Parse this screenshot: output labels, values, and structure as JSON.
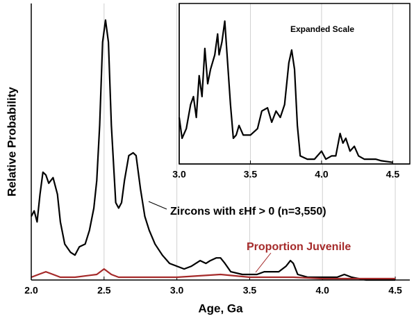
{
  "chart_data": [
    {
      "type": "line",
      "x_label": "Age, Ga",
      "y_label": "Relative Probability",
      "xlim": [
        2.0,
        4.6
      ],
      "ylim": [
        0,
        100
      ],
      "xticks": [
        {
          "value": 2.0,
          "label": "2.0"
        },
        2.5,
        {
          "value": 3.0,
          "label": "3.0"
        },
        3.5,
        {
          "value": 4.0,
          "label": "4.0"
        },
        4.5
      ],
      "grid": true,
      "series": [
        {
          "name": "Zircons with εHf > 0 (n=3,550)",
          "color": "#000000",
          "x": [
            2.0,
            2.02,
            2.04,
            2.06,
            2.08,
            2.1,
            2.12,
            2.15,
            2.18,
            2.2,
            2.23,
            2.27,
            2.3,
            2.33,
            2.37,
            2.4,
            2.43,
            2.45,
            2.47,
            2.49,
            2.51,
            2.53,
            2.55,
            2.58,
            2.6,
            2.62,
            2.64,
            2.67,
            2.7,
            2.72,
            2.75,
            2.78,
            2.81,
            2.85,
            2.9,
            2.95,
            3.0,
            3.05,
            3.1,
            3.13,
            3.16,
            3.2,
            3.23,
            3.27,
            3.3,
            3.33,
            3.37,
            3.45,
            3.55,
            3.6,
            3.65,
            3.7,
            3.75,
            3.78,
            3.8,
            3.83,
            3.9,
            4.0,
            4.1,
            4.15,
            4.2,
            4.3,
            4.5
          ],
          "values": [
            23,
            25,
            21,
            31,
            39,
            38,
            35,
            37,
            31,
            21,
            13,
            10,
            9,
            12,
            13,
            18,
            26,
            36,
            56,
            86,
            94,
            86,
            56,
            28,
            26,
            28,
            36,
            45,
            46,
            45,
            33,
            23,
            18,
            13,
            9,
            6,
            5,
            4,
            5,
            6,
            7,
            6,
            7,
            8,
            8,
            6,
            3,
            2,
            2,
            3,
            3,
            3,
            5,
            7,
            6,
            2,
            1,
            1,
            1,
            2,
            1,
            0,
            0
          ]
        },
        {
          "name": "Proportion Juvenile",
          "color": "#a52a2a",
          "x": [
            2.0,
            2.05,
            2.1,
            2.15,
            2.2,
            2.3,
            2.45,
            2.5,
            2.55,
            2.6,
            2.8,
            3.0,
            3.3,
            3.5,
            3.8,
            4.0,
            4.5
          ],
          "values": [
            1,
            2,
            3,
            2,
            1,
            1,
            2,
            4,
            2,
            1,
            1,
            1,
            2,
            1,
            1,
            0.5,
            0.5
          ]
        }
      ]
    },
    {
      "type": "line",
      "title": "Expanded Scale",
      "xlim": [
        3.0,
        4.62
      ],
      "ylim": [
        0,
        100
      ],
      "xticks": [
        {
          "value": 3.0,
          "label": "3.0"
        },
        3.5,
        {
          "value": 4.0,
          "label": "4.0"
        },
        4.5
      ],
      "grid": true,
      "series": [
        {
          "color": "#000000",
          "x": [
            3.0,
            3.02,
            3.05,
            3.08,
            3.1,
            3.12,
            3.14,
            3.16,
            3.18,
            3.2,
            3.22,
            3.25,
            3.27,
            3.28,
            3.3,
            3.32,
            3.34,
            3.36,
            3.38,
            3.4,
            3.42,
            3.45,
            3.5,
            3.55,
            3.58,
            3.62,
            3.65,
            3.68,
            3.71,
            3.74,
            3.77,
            3.79,
            3.81,
            3.83,
            3.85,
            3.9,
            3.95,
            4.0,
            4.03,
            4.07,
            4.1,
            4.13,
            4.15,
            4.17,
            4.2,
            4.23,
            4.26,
            4.3,
            4.38,
            4.42,
            4.5
          ],
          "values": [
            29,
            16,
            22,
            37,
            42,
            29,
            55,
            42,
            72,
            50,
            59,
            68,
            81,
            68,
            76,
            89,
            63,
            37,
            16,
            18,
            24,
            18,
            18,
            22,
            33,
            35,
            26,
            33,
            29,
            37,
            63,
            71,
            59,
            24,
            5,
            3,
            3,
            8,
            3,
            5,
            5,
            19,
            13,
            16,
            8,
            11,
            5,
            3,
            3,
            2,
            1
          ]
        }
      ]
    }
  ]
}
